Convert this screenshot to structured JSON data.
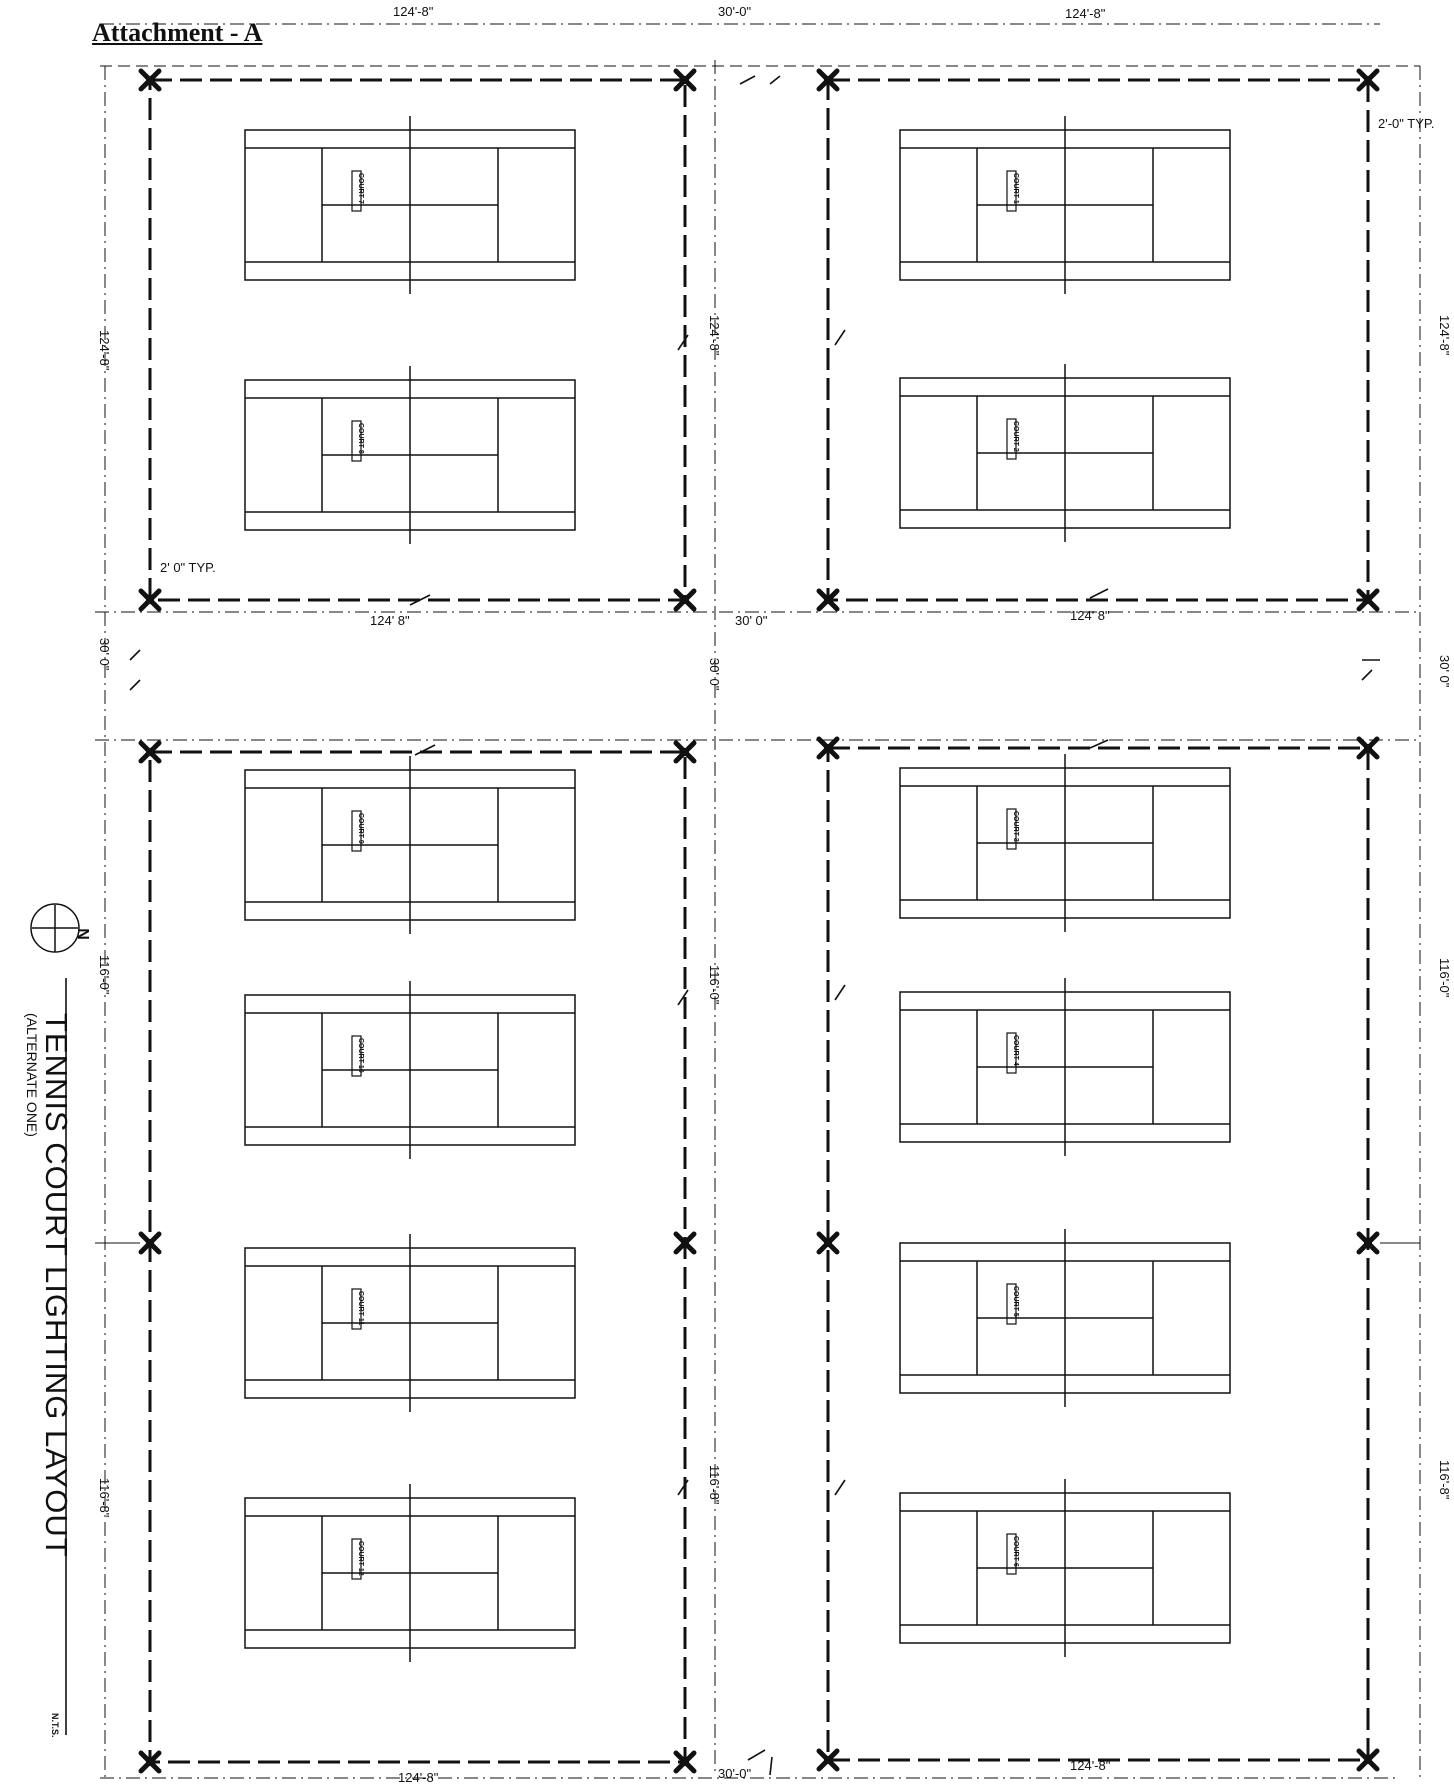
{
  "heading": "Attachment - A",
  "title": "TENNIS COURT LIGHTING LAYOUT",
  "subtitle": "(ALTERNATE ONE)",
  "scale_note": "N.T.S.",
  "north_label": "N",
  "dimensions": {
    "court_block_width": "124'-8\"",
    "court_block_width_alt": "124' 8\"",
    "aisle_width": "30'-0\"",
    "aisle_width_alt": "30' 0\"",
    "upper_block_height": "124'-8\"",
    "lower_mid_height": "116'-0\"",
    "lower_bottom_height": "116'-8\"",
    "pole_offset": "2'-0\" TYP.",
    "pole_offset_alt": "2' 0\" TYP."
  },
  "courts": [
    {
      "id": "court-7",
      "label": "COURT 7"
    },
    {
      "id": "court-1",
      "label": "COURT 1"
    },
    {
      "id": "court-8",
      "label": "COURT 8"
    },
    {
      "id": "court-2",
      "label": "COURT 2"
    },
    {
      "id": "court-9",
      "label": "COURT 9"
    },
    {
      "id": "court-3",
      "label": "COURT 3"
    },
    {
      "id": "court-10",
      "label": "COURT 10"
    },
    {
      "id": "court-4",
      "label": "COURT 4"
    },
    {
      "id": "court-11",
      "label": "COURT 11"
    },
    {
      "id": "court-5",
      "label": "COURT 5"
    },
    {
      "id": "court-12",
      "label": "COURT 12"
    },
    {
      "id": "court-6",
      "label": "COURT 6"
    }
  ]
}
